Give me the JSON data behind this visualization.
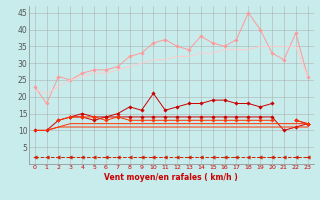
{
  "xlabel": "Vent moyen/en rafales ( km/h )",
  "x": [
    0,
    1,
    2,
    3,
    4,
    5,
    6,
    7,
    8,
    9,
    10,
    11,
    12,
    13,
    14,
    15,
    16,
    17,
    18,
    19,
    20,
    21,
    22,
    23
  ],
  "background_color": "#c8ecec",
  "series": [
    {
      "name": "pink_volatile_top",
      "color": "#ff9999",
      "linewidth": 0.7,
      "marker": "D",
      "markersize": 1.8,
      "linestyle": "-",
      "values": [
        23,
        18,
        26,
        25,
        27,
        28,
        28,
        29,
        32,
        33,
        36,
        37,
        35,
        34,
        38,
        36,
        35,
        37,
        45,
        40,
        33,
        31,
        39,
        26
      ]
    },
    {
      "name": "pink_smooth_upper",
      "color": "#ffaaaa",
      "linewidth": 0.7,
      "marker": "D",
      "markersize": 1.8,
      "linestyle": "-",
      "values": [
        null,
        null,
        null,
        null,
        null,
        null,
        null,
        null,
        null,
        null,
        null,
        null,
        null,
        null,
        null,
        null,
        null,
        null,
        null,
        null,
        null,
        null,
        null,
        null
      ]
    },
    {
      "name": "pink_trend_upper",
      "color": "#ffcccc",
      "linewidth": 0.7,
      "marker": null,
      "markersize": 0,
      "linestyle": "-",
      "values": [
        22,
        21,
        23,
        25,
        26,
        27,
        27,
        28,
        29,
        30,
        31,
        31,
        32,
        32,
        33,
        33,
        34,
        34,
        34,
        35,
        35,
        35,
        35,
        26
      ]
    },
    {
      "name": "pink_trend_lower",
      "color": "#ffcccc",
      "linewidth": 0.7,
      "marker": null,
      "markersize": 0,
      "linestyle": "-",
      "values": [
        null,
        null,
        null,
        null,
        null,
        null,
        null,
        null,
        null,
        null,
        null,
        null,
        null,
        null,
        null,
        null,
        null,
        null,
        null,
        null,
        null,
        null,
        null,
        null
      ]
    },
    {
      "name": "dark_red_volatile",
      "color": "#cc0000",
      "linewidth": 0.7,
      "marker": "D",
      "markersize": 1.8,
      "linestyle": "-",
      "values": [
        null,
        null,
        null,
        14,
        15,
        14,
        14,
        15,
        17,
        16,
        21,
        16,
        17,
        18,
        18,
        19,
        19,
        18,
        18,
        17,
        18,
        null,
        13,
        12
      ]
    },
    {
      "name": "dark_red_mid",
      "color": "#cc0000",
      "linewidth": 0.7,
      "marker": "D",
      "markersize": 1.8,
      "linestyle": "-",
      "values": [
        10,
        10,
        13,
        14,
        14,
        13,
        14,
        14,
        14,
        14,
        14,
        14,
        14,
        14,
        14,
        14,
        14,
        14,
        14,
        14,
        14,
        10,
        11,
        12
      ]
    },
    {
      "name": "red_flat_upper",
      "color": "#ff3300",
      "linewidth": 0.7,
      "marker": "D",
      "markersize": 1.8,
      "linestyle": "-",
      "values": [
        null,
        null,
        13,
        14,
        14,
        14,
        13,
        14,
        13,
        13,
        13,
        13,
        13,
        13,
        13,
        13,
        13,
        13,
        13,
        13,
        13,
        null,
        13,
        12
      ]
    },
    {
      "name": "red_trend_line",
      "color": "#ff3300",
      "linewidth": 0.7,
      "marker": null,
      "markersize": 0,
      "linestyle": "-",
      "values": [
        10,
        10,
        11,
        12,
        12,
        12,
        12,
        12,
        12,
        12,
        12,
        12,
        12,
        12,
        12,
        12,
        12,
        12,
        12,
        12,
        12,
        12,
        12,
        12
      ]
    },
    {
      "name": "red_bottom_flat",
      "color": "#ff3300",
      "linewidth": 0.7,
      "marker": null,
      "markersize": 0,
      "linestyle": "-",
      "values": [
        10,
        10,
        11,
        11,
        11,
        11,
        11,
        11,
        11,
        11,
        11,
        11,
        11,
        11,
        11,
        11,
        11,
        11,
        11,
        11,
        11,
        11,
        11,
        11
      ]
    },
    {
      "name": "dashed_bottom",
      "color": "#cc2200",
      "linewidth": 0.7,
      "marker": "<",
      "markersize": 2.5,
      "linestyle": "--",
      "values": [
        2,
        2,
        2,
        2,
        2,
        2,
        2,
        2,
        2,
        2,
        2,
        2,
        2,
        2,
        2,
        2,
        2,
        2,
        2,
        2,
        2,
        2,
        2,
        2
      ]
    }
  ],
  "yticks": [
    5,
    10,
    15,
    20,
    25,
    30,
    35,
    40,
    45
  ],
  "ylim": [
    0,
    47
  ],
  "xlim": [
    -0.5,
    23.5
  ],
  "xtick_labels": [
    "0",
    "1",
    "2",
    "3",
    "4",
    "5",
    "6",
    "7",
    "8",
    "9",
    "10",
    "11",
    "12",
    "13",
    "14",
    "15",
    "16",
    "17",
    "18",
    "19",
    "20",
    "21",
    "22",
    "23"
  ]
}
